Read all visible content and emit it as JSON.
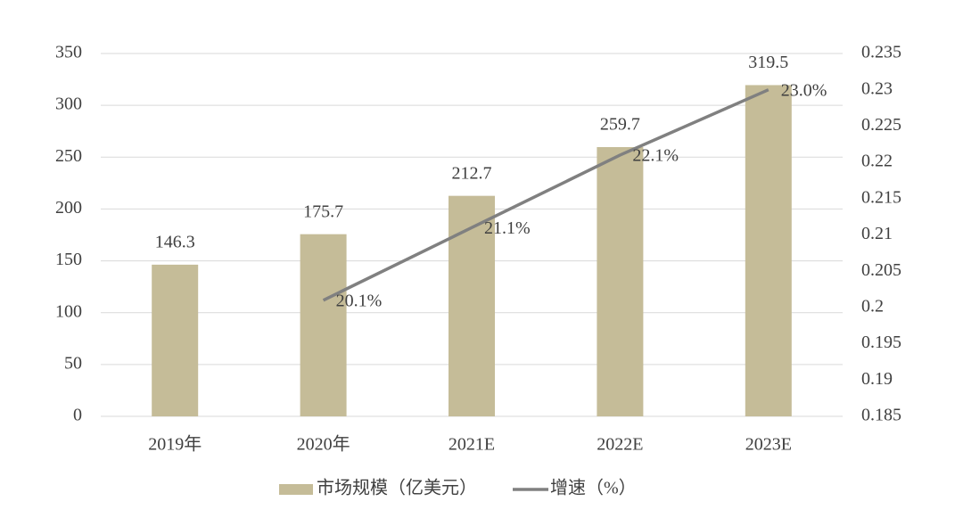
{
  "chart_data": {
    "type": "bar",
    "categories": [
      "2019年",
      "2020年",
      "2021E",
      "2022E",
      "2023E"
    ],
    "series": [
      {
        "name": "市场规模（亿美元）",
        "type": "bar",
        "color": "#c5bc98",
        "values": [
          146.3,
          175.7,
          212.7,
          259.7,
          319.5
        ]
      },
      {
        "name": "增速（%）",
        "type": "line",
        "axis": "y2",
        "color": "#808080",
        "values": [
          null,
          0.201,
          0.211,
          0.221,
          0.23
        ],
        "value_labels": [
          null,
          "20.1%",
          "21.1%",
          "22.1%",
          "23.0%"
        ]
      }
    ],
    "ylim": [
      0,
      350
    ],
    "yticks": [
      0,
      50,
      100,
      150,
      200,
      250,
      300,
      350
    ],
    "y2lim": [
      0.185,
      0.235
    ],
    "y2ticks": [
      0.185,
      0.19,
      0.195,
      0.2,
      0.205,
      0.21,
      0.215,
      0.22,
      0.225,
      0.23,
      0.235
    ],
    "grid": true,
    "legend": "bottom"
  }
}
